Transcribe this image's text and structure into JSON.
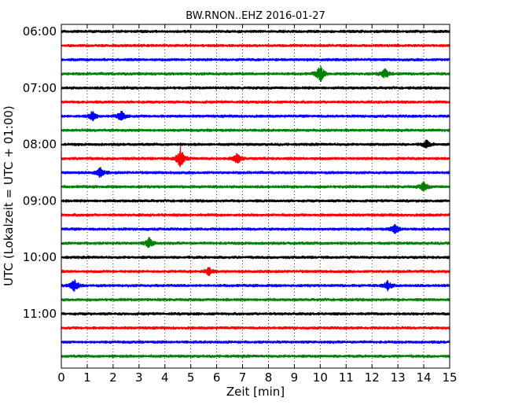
{
  "chart_data": {
    "type": "line",
    "title": "BW.RNON..EHZ 2016-01-27",
    "xlabel": "Zeit  [min]",
    "ylabel": "UTC (Lokalzeit = UTC + 01:00)",
    "xlim": [
      0,
      15
    ],
    "x_ticks": [
      "0",
      "1",
      "2",
      "3",
      "4",
      "5",
      "6",
      "7",
      "8",
      "9",
      "10",
      "11",
      "12",
      "13",
      "14",
      "15"
    ],
    "y_ticks": [
      "06:00",
      "07:00",
      "08:00",
      "09:00",
      "10:00",
      "11:00"
    ],
    "grid": "vertical dotted",
    "trace_colors": [
      "#000000",
      "#ff0000",
      "#0000ff",
      "#008000"
    ],
    "traces": [
      {
        "start": "06:00",
        "color": "#000000"
      },
      {
        "start": "06:15",
        "color": "#ff0000"
      },
      {
        "start": "06:30",
        "color": "#0000ff"
      },
      {
        "start": "06:45",
        "color": "#008000"
      },
      {
        "start": "07:00",
        "color": "#000000"
      },
      {
        "start": "07:15",
        "color": "#ff0000"
      },
      {
        "start": "07:30",
        "color": "#0000ff"
      },
      {
        "start": "07:45",
        "color": "#008000"
      },
      {
        "start": "08:00",
        "color": "#000000"
      },
      {
        "start": "08:15",
        "color": "#ff0000"
      },
      {
        "start": "08:30",
        "color": "#0000ff"
      },
      {
        "start": "08:45",
        "color": "#008000"
      },
      {
        "start": "09:00",
        "color": "#000000"
      },
      {
        "start": "09:15",
        "color": "#ff0000"
      },
      {
        "start": "09:30",
        "color": "#0000ff"
      },
      {
        "start": "09:45",
        "color": "#008000"
      },
      {
        "start": "10:00",
        "color": "#000000"
      },
      {
        "start": "10:15",
        "color": "#ff0000"
      },
      {
        "start": "10:30",
        "color": "#0000ff"
      },
      {
        "start": "10:45",
        "color": "#008000"
      },
      {
        "start": "11:00",
        "color": "#000000"
      },
      {
        "start": "11:15",
        "color": "#ff0000"
      },
      {
        "start": "11:30",
        "color": "#0000ff"
      },
      {
        "start": "11:45",
        "color": "#008000"
      }
    ],
    "events": [
      {
        "trace": "06:45",
        "minute": 10.0,
        "amp": 2.2
      },
      {
        "trace": "06:45",
        "minute": 12.5,
        "amp": 1.2
      },
      {
        "trace": "07:30",
        "minute": 1.2,
        "amp": 1.2
      },
      {
        "trace": "07:30",
        "minute": 2.3,
        "amp": 1.5
      },
      {
        "trace": "08:00",
        "minute": 14.1,
        "amp": 1.0
      },
      {
        "trace": "08:15",
        "minute": 4.6,
        "amp": 2.8
      },
      {
        "trace": "08:15",
        "minute": 6.8,
        "amp": 1.5
      },
      {
        "trace": "08:30",
        "minute": 1.5,
        "amp": 1.2
      },
      {
        "trace": "08:45",
        "minute": 14.0,
        "amp": 1.2
      },
      {
        "trace": "09:30",
        "minute": 12.9,
        "amp": 1.2
      },
      {
        "trace": "09:45",
        "minute": 3.4,
        "amp": 1.4
      },
      {
        "trace": "10:15",
        "minute": 5.7,
        "amp": 1.0
      },
      {
        "trace": "10:30",
        "minute": 0.5,
        "amp": 1.6
      },
      {
        "trace": "10:30",
        "minute": 12.6,
        "amp": 1.2
      }
    ]
  }
}
